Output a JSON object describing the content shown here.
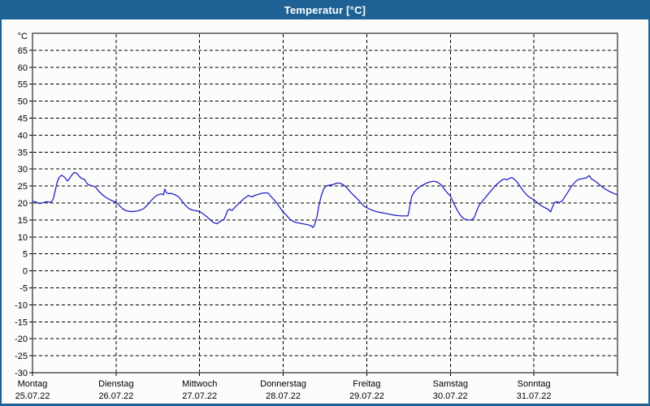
{
  "window": {
    "title": "Temperatur [°C]",
    "titlebar_color": "#1e6295",
    "background_color": "#fcfdfa"
  },
  "chart_data": {
    "type": "line",
    "title": "Temperatur [°C]",
    "ylabel_unit": "°C",
    "ylim": [
      -30,
      70
    ],
    "y_ticks": [
      65,
      60,
      55,
      50,
      45,
      40,
      35,
      30,
      25,
      20,
      15,
      10,
      5,
      0,
      -5,
      -10,
      -15,
      -20,
      -25,
      -30
    ],
    "grid": true,
    "legend_position": "none",
    "line_color": "#2323c8",
    "grid_color": "#000000",
    "x_axis": {
      "hours_total": 168,
      "days": [
        {
          "weekday": "Montag",
          "date": "25.07.22"
        },
        {
          "weekday": "Dienstag",
          "date": "26.07.22"
        },
        {
          "weekday": "Mittwoch",
          "date": "27.07.22"
        },
        {
          "weekday": "Donnerstag",
          "date": "28.07.22"
        },
        {
          "weekday": "Freitag",
          "date": "29.07.22"
        },
        {
          "weekday": "Samstag",
          "date": "30.07.22"
        },
        {
          "weekday": "Sonntag",
          "date": "31.07.22"
        }
      ]
    },
    "series": [
      {
        "name": "Temperatur",
        "unit": "°C",
        "points_hour_temp": [
          [
            0,
            20.5
          ],
          [
            1,
            20.3
          ],
          [
            2,
            19.8
          ],
          [
            3,
            20.1
          ],
          [
            4,
            20.4
          ],
          [
            5,
            20.2
          ],
          [
            5.5,
            20.4
          ],
          [
            6,
            21.3
          ],
          [
            6.5,
            23.5
          ],
          [
            7,
            25.8
          ],
          [
            7.5,
            27.3
          ],
          [
            8,
            27.9
          ],
          [
            8.4,
            28.2
          ],
          [
            9.2,
            27.6
          ],
          [
            10,
            26.5
          ],
          [
            10.5,
            27.0
          ],
          [
            11,
            27.8
          ],
          [
            11.5,
            28.5
          ],
          [
            12,
            29.0
          ],
          [
            12.8,
            28.7
          ],
          [
            13.5,
            27.8
          ],
          [
            14,
            27.3
          ],
          [
            15,
            26.9
          ],
          [
            15.5,
            26.0
          ],
          [
            16,
            25.4
          ],
          [
            17,
            25.1
          ],
          [
            18,
            24.8
          ],
          [
            19,
            23.5
          ],
          [
            20,
            22.5
          ],
          [
            21,
            21.7
          ],
          [
            22,
            21.1
          ],
          [
            23,
            20.6
          ],
          [
            24,
            20.2
          ],
          [
            25,
            19.2
          ],
          [
            26,
            18.2
          ],
          [
            27,
            17.7
          ],
          [
            28,
            17.5
          ],
          [
            29,
            17.5
          ],
          [
            30,
            17.6
          ],
          [
            31,
            17.9
          ],
          [
            32,
            18.4
          ],
          [
            33,
            19.4
          ],
          [
            34,
            20.6
          ],
          [
            35,
            21.7
          ],
          [
            36,
            22.4
          ],
          [
            37,
            22.7
          ],
          [
            37.6,
            22.4
          ],
          [
            38,
            24.1
          ],
          [
            38.4,
            23.1
          ],
          [
            39,
            22.8
          ],
          [
            40,
            22.8
          ],
          [
            41,
            22.4
          ],
          [
            42,
            21.8
          ],
          [
            43,
            20.5
          ],
          [
            44,
            19.2
          ],
          [
            45,
            18.3
          ],
          [
            46,
            17.9
          ],
          [
            47,
            17.7
          ],
          [
            48,
            17.5
          ],
          [
            49,
            16.8
          ],
          [
            50,
            16.0
          ],
          [
            51,
            15.1
          ],
          [
            52,
            14.2
          ],
          [
            53,
            13.9
          ],
          [
            54,
            14.6
          ],
          [
            55,
            15.2
          ],
          [
            55.7,
            16.8
          ],
          [
            56,
            17.8
          ],
          [
            56.6,
            18.2
          ],
          [
            57.3,
            17.8
          ],
          [
            58,
            18.6
          ],
          [
            59,
            19.6
          ],
          [
            60,
            20.6
          ],
          [
            61,
            21.5
          ],
          [
            62,
            22.2
          ],
          [
            63,
            21.8
          ],
          [
            64,
            22.3
          ],
          [
            65,
            22.6
          ],
          [
            66,
            22.9
          ],
          [
            67,
            23.0
          ],
          [
            67.7,
            22.9
          ],
          [
            68.5,
            21.9
          ],
          [
            69.5,
            20.8
          ],
          [
            70.5,
            19.5
          ],
          [
            71.3,
            18.3
          ],
          [
            72,
            17.3
          ],
          [
            73,
            16.3
          ],
          [
            74,
            15.1
          ],
          [
            75,
            14.5
          ],
          [
            76,
            14.2
          ],
          [
            77,
            14.0
          ],
          [
            78,
            13.8
          ],
          [
            79,
            13.6
          ],
          [
            80,
            13.3
          ],
          [
            80.5,
            12.8
          ],
          [
            81,
            13.4
          ],
          [
            81.7,
            16.0
          ],
          [
            82.3,
            19.5
          ],
          [
            83,
            22.4
          ],
          [
            83.7,
            24.3
          ],
          [
            84.5,
            25.1
          ],
          [
            85.5,
            25.3
          ],
          [
            86.5,
            25.5
          ],
          [
            87.5,
            25.9
          ],
          [
            88.5,
            25.8
          ],
          [
            89.5,
            25.2
          ],
          [
            90.5,
            24.2
          ],
          [
            91.5,
            23.0
          ],
          [
            92.5,
            22.0
          ],
          [
            93.5,
            21.0
          ],
          [
            94.5,
            19.8
          ],
          [
            95.3,
            19.0
          ],
          [
            96,
            18.6
          ],
          [
            97,
            18.1
          ],
          [
            98,
            17.7
          ],
          [
            99,
            17.4
          ],
          [
            100,
            17.2
          ],
          [
            101,
            17.0
          ],
          [
            102,
            16.8
          ],
          [
            103,
            16.6
          ],
          [
            104,
            16.4
          ],
          [
            105,
            16.3
          ],
          [
            106,
            16.2
          ],
          [
            107,
            16.2
          ],
          [
            107.8,
            16.2
          ],
          [
            108.1,
            17.5
          ],
          [
            108.5,
            20.0
          ],
          [
            109,
            22.2
          ],
          [
            109.7,
            23.3
          ],
          [
            110.5,
            24.2
          ],
          [
            111.5,
            25.0
          ],
          [
            112.5,
            25.5
          ],
          [
            113.5,
            26.0
          ],
          [
            114.5,
            26.3
          ],
          [
            115,
            26.4
          ],
          [
            116,
            26.3
          ],
          [
            116.8,
            25.8
          ],
          [
            117.5,
            25.2
          ],
          [
            118.3,
            24.0
          ],
          [
            119.2,
            22.9
          ],
          [
            120,
            22.1
          ],
          [
            121,
            19.9
          ],
          [
            122,
            17.8
          ],
          [
            123,
            16.2
          ],
          [
            124,
            15.3
          ],
          [
            125,
            15.0
          ],
          [
            126,
            15.0
          ],
          [
            126.8,
            15.6
          ],
          [
            127.5,
            17.5
          ],
          [
            128.3,
            19.4
          ],
          [
            129,
            20.3
          ],
          [
            130,
            21.5
          ],
          [
            131,
            22.8
          ],
          [
            132,
            24.0
          ],
          [
            133,
            25.2
          ],
          [
            134,
            26.1
          ],
          [
            135,
            26.9
          ],
          [
            135.7,
            27.1
          ],
          [
            136.3,
            26.8
          ],
          [
            137,
            27.3
          ],
          [
            137.7,
            27.5
          ],
          [
            138.5,
            26.9
          ],
          [
            139.3,
            26.0
          ],
          [
            140.2,
            24.6
          ],
          [
            141,
            23.5
          ],
          [
            142,
            22.3
          ],
          [
            143,
            21.5
          ],
          [
            144,
            21.0
          ],
          [
            145,
            20.1
          ],
          [
            146,
            19.3
          ],
          [
            147,
            18.7
          ],
          [
            148,
            18.2
          ],
          [
            148.8,
            17.4
          ],
          [
            149.8,
            20.0
          ],
          [
            150.5,
            20.4
          ],
          [
            151.3,
            20.1
          ],
          [
            152.2,
            20.7
          ],
          [
            153.5,
            22.8
          ],
          [
            154.7,
            24.8
          ],
          [
            156,
            26.4
          ],
          [
            157,
            27.0
          ],
          [
            158,
            27.2
          ],
          [
            159,
            27.4
          ],
          [
            159.9,
            28.1
          ],
          [
            160.5,
            27.1
          ],
          [
            161.5,
            26.5
          ],
          [
            162.5,
            25.7
          ],
          [
            163.5,
            24.8
          ],
          [
            164.5,
            24.1
          ],
          [
            165.5,
            23.5
          ],
          [
            166.5,
            23.0
          ],
          [
            167.2,
            22.7
          ],
          [
            168,
            22.4
          ]
        ]
      }
    ]
  }
}
